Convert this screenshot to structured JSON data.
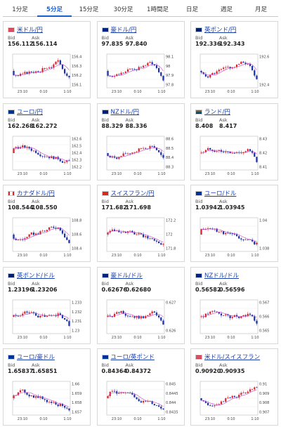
{
  "tabs": [
    {
      "label": "1分足",
      "active": false
    },
    {
      "label": "5分足",
      "active": true
    },
    {
      "label": "15分足",
      "active": false
    },
    {
      "label": "30分足",
      "active": false
    },
    {
      "label": "1時間足",
      "active": false
    },
    {
      "label": "日足",
      "active": false
    },
    {
      "label": "週足",
      "active": false
    },
    {
      "label": "月足",
      "active": false
    }
  ],
  "labels": {
    "bid": "Bid",
    "ask": "Ask"
  },
  "colors": {
    "up": "#d8232a",
    "down": "#1a2fa8",
    "ma": "#cc44cc",
    "tab_active": "#1a5fd1",
    "link": "#1a3fa8"
  },
  "x_ticks": [
    "23:10",
    "0:10",
    "1:10"
  ],
  "pairs": [
    {
      "name": "米ドル/円",
      "flag": "us-flag",
      "bid": "156.112",
      "ask": "156.114",
      "y_ticks": [
        "156.4",
        "156.3",
        "156.2",
        "156.1"
      ],
      "trend": "up-dip"
    },
    {
      "name": "豪ドル/円",
      "flag": "au-flag",
      "bid": "97.835",
      "ask": "97.840",
      "y_ticks": [
        "98.1",
        "98",
        "97.9",
        "97.8"
      ],
      "trend": "up-dip"
    },
    {
      "name": "英ポンド/円",
      "flag": "gb-flag",
      "bid": "192.336",
      "ask": "192.343",
      "y_ticks": [
        "192.6",
        "192.4"
      ],
      "trend": "up-dip"
    },
    {
      "name": "ユーロ/円",
      "flag": "eu-flag",
      "bid": "162.268",
      "ask": "162.272",
      "y_ticks": [
        "162.6",
        "162.5",
        "162.4",
        "162.3",
        "162.2"
      ],
      "trend": "down"
    },
    {
      "name": "NZドル/円",
      "flag": "nz-flag",
      "bid": "88.329",
      "ask": "88.336",
      "y_ticks": [
        "88.6",
        "88.5",
        "88.4",
        "88.3"
      ],
      "trend": "up-dip"
    },
    {
      "name": "ランド/円",
      "flag": "za-flag",
      "bid": "8.408",
      "ask": "8.417",
      "y_ticks": [
        "8.43",
        "8.42",
        "8.41"
      ],
      "trend": "flat-dip"
    },
    {
      "name": "カナダドル/円",
      "flag": "ca-flag",
      "bid": "108.544",
      "ask": "108.550",
      "y_ticks": [
        "108.8",
        "108.6",
        "108.4"
      ],
      "trend": "up-dip"
    },
    {
      "name": "スイスフラン/円",
      "flag": "ch-flag",
      "bid": "171.682",
      "ask": "171.698",
      "y_ticks": [
        "172.2",
        "172",
        "171.8"
      ],
      "trend": "down"
    },
    {
      "name": "ユーロ/ドル",
      "flag": "eu-flag",
      "bid": "1.03942",
      "ask": "1.03945",
      "y_ticks": [
        "1.04",
        "1.038"
      ],
      "trend": "down"
    },
    {
      "name": "英ポンド/ドル",
      "flag": "gb-flag",
      "bid": "1.23196",
      "ask": "1.23206",
      "y_ticks": [
        "1.233",
        "1.232",
        "1.231",
        "1.23"
      ],
      "trend": "flat-dip"
    },
    {
      "name": "豪ドル/ドル",
      "flag": "au-flag",
      "bid": "0.62676",
      "ask": "0.62680",
      "y_ticks": [
        "0.627",
        "0.626"
      ],
      "trend": "flat-dip"
    },
    {
      "name": "NZドル/ドル",
      "flag": "nz-flag",
      "bid": "0.56582",
      "ask": "0.56596",
      "y_ticks": [
        "0.567",
        "0.566",
        "0.565"
      ],
      "trend": "flat-dip"
    },
    {
      "name": "ユーロ/豪ドル",
      "flag": "eu-flag",
      "bid": "1.65837",
      "ask": "1.65851",
      "y_ticks": [
        "1.66",
        "1.659",
        "1.658",
        "1.657"
      ],
      "trend": "down"
    },
    {
      "name": "ユーロ/英ポンド",
      "flag": "eu-flag",
      "bid": "0.84364",
      "ask": "0.84372",
      "y_ticks": [
        "0.845",
        "0.8445",
        "0.844",
        "0.8435"
      ],
      "trend": "down"
    },
    {
      "name": "米ドル/スイスフラン",
      "flag": "us-flag",
      "bid": "0.90920",
      "ask": "0.90935",
      "y_ticks": [
        "0.91",
        "0.909",
        "0.908",
        "0.907"
      ],
      "trend": "up"
    }
  ]
}
